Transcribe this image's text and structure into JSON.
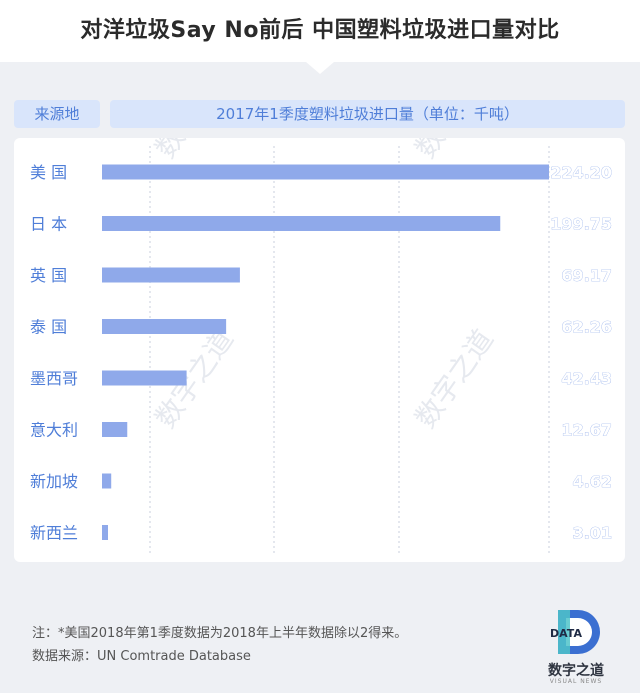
{
  "header": {
    "title": "对洋垃圾Say No前后  中国塑料垃圾进口量对比"
  },
  "labels": {
    "origin": "来源地",
    "measure": "2017年1季度塑料垃圾进口量（单位：千吨）"
  },
  "chart_data": {
    "type": "bar",
    "orientation": "horizontal",
    "title": "2017年1季度塑料垃圾进口量（单位：千吨）",
    "categories": [
      "美 国",
      "日 本",
      "英 国",
      "泰 国",
      "墨西哥",
      "意大利",
      "新加坡",
      "新西兰"
    ],
    "values": [
      224.2,
      199.75,
      69.17,
      62.26,
      42.43,
      12.67,
      4.62,
      3.01
    ],
    "value_labels": [
      "224.20",
      "199.75",
      "69.17",
      "62.26",
      "42.43",
      "12.67",
      "4.62",
      "3.01"
    ],
    "xlim": [
      0,
      224.2
    ],
    "grid": true,
    "bar_color": "#8fa9ea",
    "label_color": "#4f7ed8"
  },
  "watermark": {
    "text": "数字之道"
  },
  "footer": {
    "note": "注：*美国2018年第1季度数据为2018年上半年数据除以2得来。",
    "source": "数据来源：UN Comtrade Database"
  },
  "logo": {
    "mark": "DATA",
    "name": "数字之道",
    "sub": "VISUAL NEWS"
  }
}
